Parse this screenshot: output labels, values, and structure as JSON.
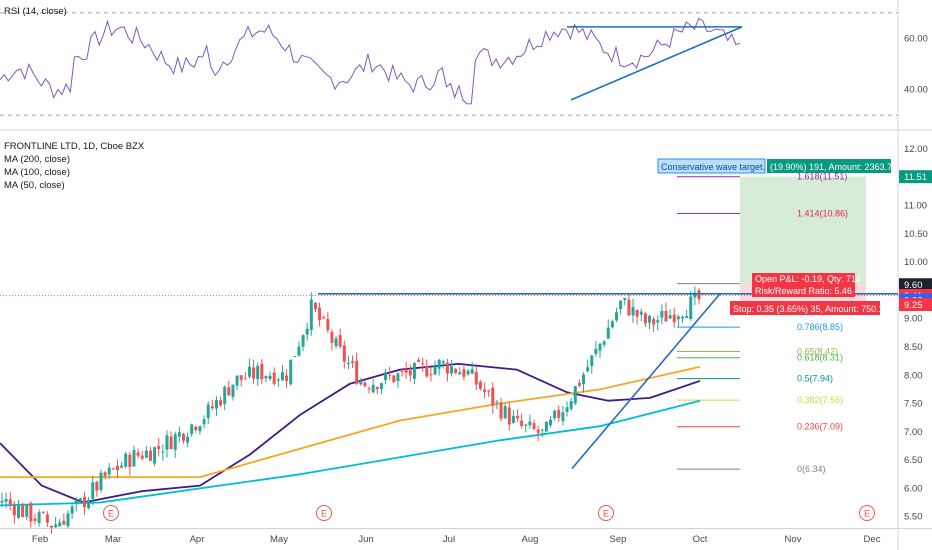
{
  "rsi_panel": {
    "label": "RSI (14, close)",
    "ticks": [
      "60.00",
      "40.00"
    ]
  },
  "main_panel": {
    "title": "FRONTLINE LTD, 1D, Cboe BZX",
    "indicators": [
      "MA (200, close)",
      "MA (100, close)",
      "MA (50, close)"
    ],
    "price_ticks": [
      "12.00",
      "11.00",
      "10.50",
      "10.00",
      "9.00",
      "8.50",
      "8.00",
      "7.50",
      "7.00",
      "6.50",
      "6.00",
      "5.50"
    ]
  },
  "x_axis": {
    "months": [
      "Feb",
      "Mar",
      "Apr",
      "May",
      "Jun",
      "Jul",
      "Aug",
      "Sep",
      "Oct",
      "Nov",
      "Dec"
    ],
    "earnings_marker": "E"
  },
  "price_tags": [
    {
      "text": "11.51",
      "bg": "#089981"
    },
    {
      "text": "9.60",
      "bg": "#1e222d"
    },
    {
      "text": "9.41",
      "bg": "#f23645"
    },
    {
      "text": "9.33",
      "bg": "#2962ff"
    },
    {
      "text": "9.25",
      "bg": "#f23645"
    }
  ],
  "annotations": {
    "target_label": "Conservative wave target.",
    "target_amount": "(19.90%) 191, Amount: 2363.74",
    "open_pnl": "Open P&L: -0.19, Qty: 714",
    "rr": "Risk/Reward Ratio: 5.46",
    "stop": "Stop: 0.35 (3.65%) 35, Amount: 750.1"
  },
  "fib_levels": [
    {
      "label": "1.618(11.51)",
      "color": "#9c27b0",
      "value": 11.51
    },
    {
      "label": "1.414(10.86)",
      "color": "#e91e63",
      "value": 10.86
    },
    {
      "label": "1",
      "color": "#808080",
      "value": 9.62
    },
    {
      "label": "0.786(8.85)",
      "color": "#2196f3",
      "value": 8.85
    },
    {
      "label": "0.65(8.42)",
      "color": "#8bc34a",
      "value": 8.42
    },
    {
      "label": "0.618(8.31)",
      "color": "#4caf50",
      "value": 8.31
    },
    {
      "label": "0.5(7.94)",
      "color": "#009688",
      "value": 7.94
    },
    {
      "label": "0.382(7.56)",
      "color": "#cddc39",
      "value": 7.56
    },
    {
      "label": "0.236(7.09)",
      "color": "#f44336",
      "value": 7.09
    },
    {
      "label": "0(6.34)",
      "color": "#808080",
      "value": 6.34
    }
  ],
  "colors": {
    "up": "#26a69a",
    "down": "#ef5350",
    "ma50": "#3f1a8c",
    "ma100": "#f5a623",
    "ma200": "#00bcd4",
    "rsi": "#7e57c2",
    "trend": "#1e6fc0"
  },
  "chart_data": {
    "type": "candlestick",
    "title": "FRONTLINE LTD, 1D, Cboe BZX",
    "ylim": [
      5.3,
      12.3
    ],
    "close_series": [
      {
        "date": "Jan 20",
        "close": 5.8
      },
      {
        "date": "Feb 1",
        "close": 5.55
      },
      {
        "date": "Feb 10",
        "close": 5.35
      },
      {
        "date": "Feb 20",
        "close": 5.7
      },
      {
        "date": "Mar 1",
        "close": 6.2
      },
      {
        "date": "Mar 10",
        "close": 6.55
      },
      {
        "date": "Mar 20",
        "close": 6.7
      },
      {
        "date": "Apr 1",
        "close": 7.0
      },
      {
        "date": "Apr 10",
        "close": 7.35
      },
      {
        "date": "Apr 20",
        "close": 7.9
      },
      {
        "date": "May 1",
        "close": 8.05
      },
      {
        "date": "May 10",
        "close": 8.0
      },
      {
        "date": "May 18",
        "close": 9.2
      },
      {
        "date": "May 28",
        "close": 8.45
      },
      {
        "date": "Jun 8",
        "close": 7.85
      },
      {
        "date": "Jun 20",
        "close": 7.95
      },
      {
        "date": "Jul 1",
        "close": 8.05
      },
      {
        "date": "Jul 10",
        "close": 8.2
      },
      {
        "date": "Jul 20",
        "close": 8.05
      },
      {
        "date": "Aug 1",
        "close": 7.55
      },
      {
        "date": "Aug 10",
        "close": 7.1
      },
      {
        "date": "Aug 16",
        "close": 6.95
      },
      {
        "date": "Aug 24",
        "close": 7.6
      },
      {
        "date": "Sep 1",
        "close": 8.4
      },
      {
        "date": "Sep 8",
        "close": 9.3
      },
      {
        "date": "Sep 16",
        "close": 8.9
      },
      {
        "date": "Sep 24",
        "close": 9.1
      },
      {
        "date": "Oct 1",
        "close": 9.33
      }
    ],
    "moving_averages": {
      "MA (50, close)": [
        [
          0,
          6.8
        ],
        [
          0.05,
          6.05
        ],
        [
          0.1,
          5.75
        ],
        [
          0.17,
          5.95
        ],
        [
          0.24,
          6.05
        ],
        [
          0.3,
          6.6
        ],
        [
          0.36,
          7.3
        ],
        [
          0.42,
          7.85
        ],
        [
          0.48,
          8.1
        ],
        [
          0.55,
          8.2
        ],
        [
          0.62,
          8.1
        ],
        [
          0.68,
          7.7
        ],
        [
          0.73,
          7.55
        ],
        [
          0.78,
          7.6
        ],
        [
          0.84,
          7.9
        ]
      ],
      "MA (100, close)": [
        [
          0,
          6.2
        ],
        [
          0.1,
          6.2
        ],
        [
          0.24,
          6.2
        ],
        [
          0.36,
          6.7
        ],
        [
          0.48,
          7.2
        ],
        [
          0.6,
          7.5
        ],
        [
          0.72,
          7.75
        ],
        [
          0.84,
          8.15
        ]
      ],
      "MA (200, close)": [
        [
          0,
          5.7
        ],
        [
          0.12,
          5.75
        ],
        [
          0.24,
          6.0
        ],
        [
          0.36,
          6.25
        ],
        [
          0.48,
          6.55
        ],
        [
          0.6,
          6.85
        ],
        [
          0.72,
          7.1
        ],
        [
          0.84,
          7.55
        ]
      ]
    },
    "rsi": {
      "ylim": [
        25,
        75
      ],
      "levels": [
        70,
        30
      ]
    }
  }
}
